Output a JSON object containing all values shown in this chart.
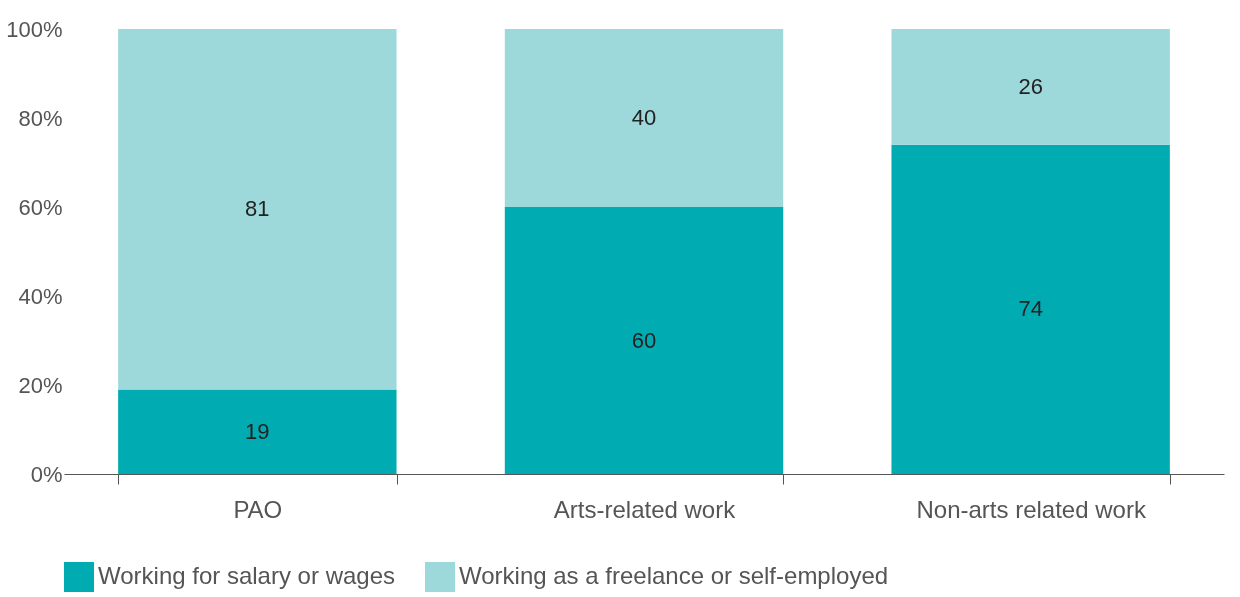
{
  "chart_data": {
    "type": "bar",
    "stacked": true,
    "categories": [
      "PAO",
      "Arts-related work",
      "Non-arts related work"
    ],
    "series": [
      {
        "name": "Working for salary or wages",
        "color": "#00abb1",
        "values": [
          19,
          60,
          74
        ]
      },
      {
        "name": "Working as a freelance or self-employed",
        "color": "#9dd8da",
        "values": [
          81,
          40,
          26
        ]
      }
    ],
    "ylim": [
      0,
      100
    ],
    "yticks": [
      {
        "value": 0,
        "label": "0%"
      },
      {
        "value": 20,
        "label": "20%"
      },
      {
        "value": 40,
        "label": "40%"
      },
      {
        "value": 60,
        "label": "60%"
      },
      {
        "value": 80,
        "label": "80%"
      },
      {
        "value": 100,
        "label": "100%"
      }
    ],
    "data_labels": true,
    "legend": "bottom left",
    "grid": false
  }
}
